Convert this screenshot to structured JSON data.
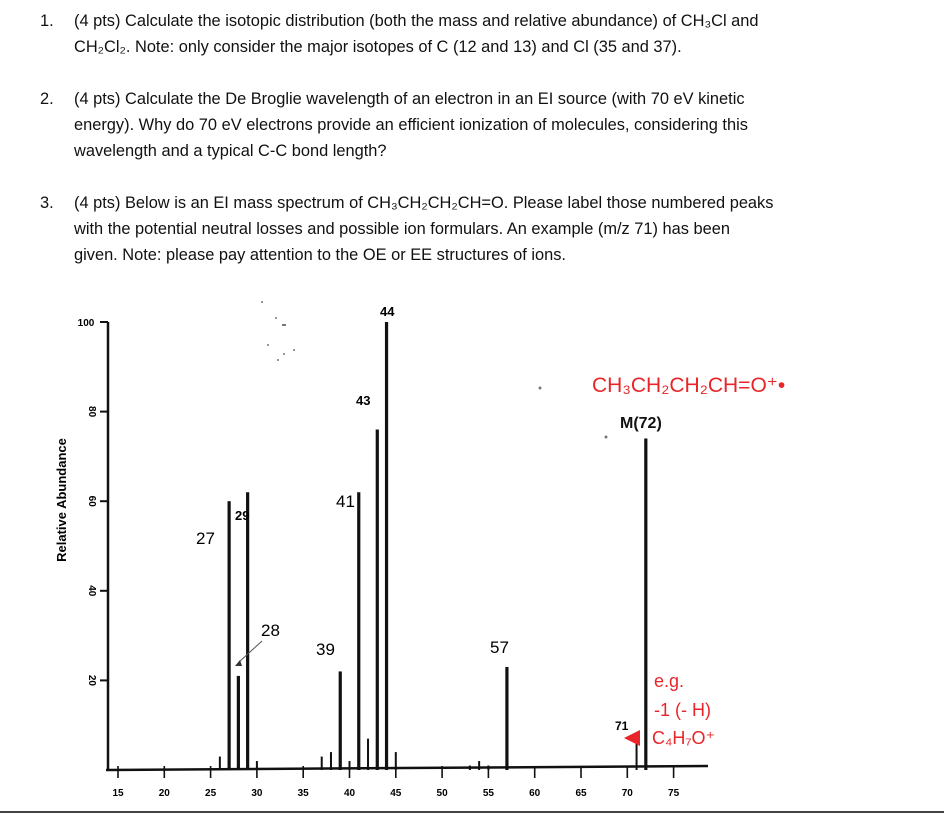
{
  "questions": [
    {
      "number": "1.",
      "lines": [
        "(4 pts) Calculate the isotopic distribution (both the mass and relative abundance) of CH₃Cl and",
        "CH₂Cl₂. Note: only consider the major isotopes of C (12 and 13) and Cl (35 and 37)."
      ]
    },
    {
      "number": "2.",
      "lines": [
        "(4 pts) Calculate the De Broglie wavelength of an electron in an EI source (with 70 eV kinetic",
        "energy). Why do 70 eV electrons provide an efficient ionization of molecules, considering this",
        "wavelength and a typical C-C bond length?"
      ]
    },
    {
      "number": "3.",
      "lines": [
        "(4 pts) Below is an EI mass spectrum of CH₃CH₂CH₂CH=O. Please label those numbered peaks",
        "with the potential neutral losses and possible ion formulars. An example (m/z 71) has been",
        "given. Note: please pay attention to the OE or EE structures of ions."
      ]
    }
  ],
  "spectrum": {
    "ylabel": "Relative Abundance",
    "y_ticks": [
      "100",
      "80",
      "60",
      "40",
      "20"
    ],
    "x_ticks": [
      "15",
      "20",
      "25",
      "30",
      "35",
      "40",
      "45",
      "50",
      "55",
      "60",
      "65",
      "70",
      "75"
    ],
    "molecule_label": "CH₃CH₂CH₂CH=O⁺•",
    "molecular_ion_label": "M(72)",
    "accent_color": "#e8262a",
    "example_annotation": [
      "e.g.",
      "-1 (- H)",
      "C₄H₇O⁺"
    ],
    "peak_labels": {
      "p27": "27",
      "p28": "28",
      "p29": "29",
      "p39": "39",
      "p41": "41",
      "p43": "43",
      "p44": "44",
      "p57": "57",
      "p71": "71"
    }
  },
  "chart_data": {
    "type": "bar",
    "ylabel": "Relative Abundance",
    "xlim": [
      15,
      76
    ],
    "ylim": [
      0,
      100
    ],
    "x": [
      26,
      27,
      28,
      29,
      30,
      37,
      38,
      39,
      40,
      41,
      42,
      43,
      44,
      45,
      53,
      54,
      55,
      57,
      71,
      72
    ],
    "values": [
      3,
      60,
      21,
      62,
      2,
      3,
      4,
      22,
      2,
      62,
      7,
      76,
      100,
      4,
      1,
      2,
      1,
      23,
      8,
      74
    ]
  }
}
